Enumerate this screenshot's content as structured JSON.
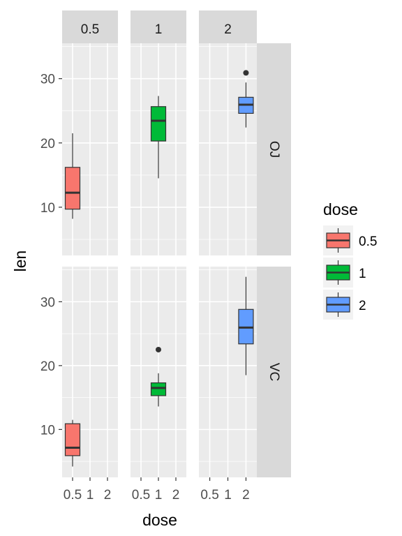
{
  "chart_data": {
    "type": "boxplot",
    "facet_cols_var": "dose",
    "facet_rows_var": "supp",
    "col_labels": [
      "0.5",
      "1",
      "2"
    ],
    "row_labels": [
      "OJ",
      "VC"
    ],
    "xlabel": "dose",
    "ylabel": "len",
    "x_categories": [
      "0.5",
      "1",
      "2"
    ],
    "ylim": [
      2.5,
      35.5
    ],
    "y_ticks": [
      10,
      20,
      30
    ],
    "legend": {
      "title": "dose",
      "position": "right",
      "entries": [
        {
          "label": "0.5",
          "color": "#F8766D"
        },
        {
          "label": "1",
          "color": "#00BA38"
        },
        {
          "label": "2",
          "color": "#619CFF"
        }
      ]
    },
    "boxes": [
      {
        "row": "OJ",
        "col": "0.5",
        "x": "0.5",
        "color": "#F8766D",
        "whisker_low": 8.2,
        "q1": 9.7,
        "median": 12.25,
        "q3": 16.2,
        "whisker_high": 21.5,
        "outliers": []
      },
      {
        "row": "OJ",
        "col": "1",
        "x": "1",
        "color": "#00BA38",
        "whisker_low": 14.5,
        "q1": 20.3,
        "median": 23.45,
        "q3": 25.65,
        "whisker_high": 27.3,
        "outliers": []
      },
      {
        "row": "OJ",
        "col": "2",
        "x": "2",
        "color": "#619CFF",
        "whisker_low": 22.4,
        "q1": 24.6,
        "median": 25.95,
        "q3": 27.1,
        "whisker_high": 29.4,
        "outliers": [
          30.9
        ]
      },
      {
        "row": "VC",
        "col": "0.5",
        "x": "0.5",
        "color": "#F8766D",
        "whisker_low": 4.2,
        "q1": 5.9,
        "median": 7.15,
        "q3": 10.9,
        "whisker_high": 11.5,
        "outliers": []
      },
      {
        "row": "VC",
        "col": "1",
        "x": "1",
        "color": "#00BA38",
        "whisker_low": 13.6,
        "q1": 15.3,
        "median": 16.5,
        "q3": 17.3,
        "whisker_high": 18.8,
        "outliers": [
          22.5
        ]
      },
      {
        "row": "VC",
        "col": "2",
        "x": "2",
        "color": "#619CFF",
        "whisker_low": 18.5,
        "q1": 23.4,
        "median": 25.95,
        "q3": 28.8,
        "whisker_high": 33.9,
        "outliers": []
      }
    ]
  }
}
